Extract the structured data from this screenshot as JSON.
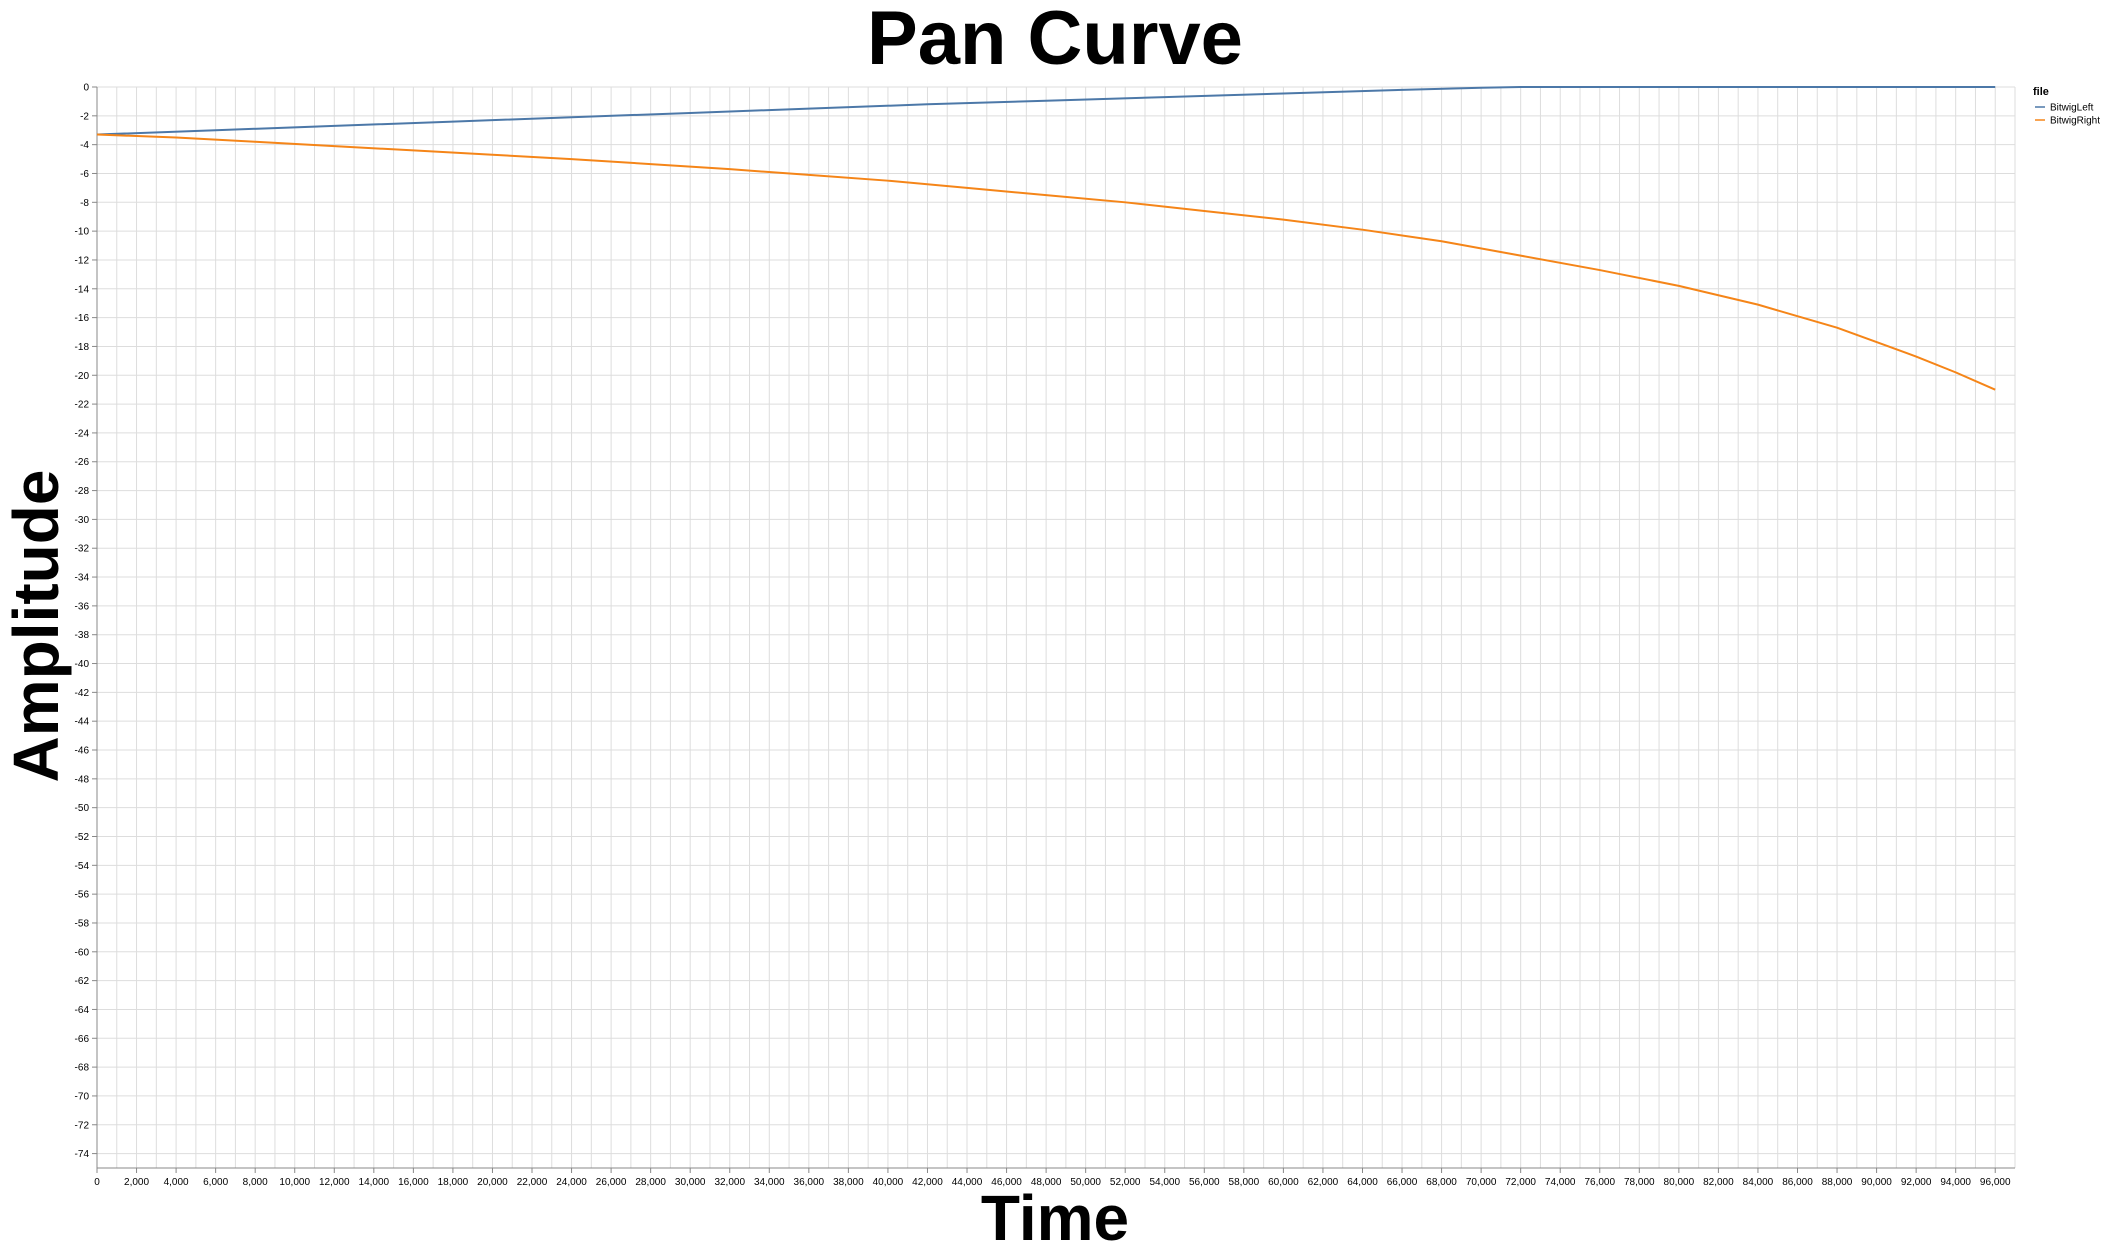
{
  "chart_data": {
    "type": "line",
    "title": "Pan Curve",
    "xlabel": "Time",
    "ylabel": "Amplitude",
    "xlim": [
      0,
      97000
    ],
    "ylim": [
      -75,
      0
    ],
    "x_ticks": [
      0,
      2000,
      4000,
      6000,
      8000,
      10000,
      12000,
      14000,
      16000,
      18000,
      20000,
      22000,
      24000,
      26000,
      28000,
      30000,
      32000,
      34000,
      36000,
      38000,
      40000,
      42000,
      44000,
      46000,
      48000,
      50000,
      52000,
      54000,
      56000,
      58000,
      60000,
      62000,
      64000,
      66000,
      68000,
      70000,
      72000,
      74000,
      76000,
      78000,
      80000,
      82000,
      84000,
      86000,
      88000,
      90000,
      92000,
      94000,
      96000
    ],
    "x_tick_labels": [
      "0",
      "2,000",
      "4,000",
      "6,000",
      "8,000",
      "10,000",
      "12,000",
      "14,000",
      "16,000",
      "18,000",
      "20,000",
      "22,000",
      "24,000",
      "26,000",
      "28,000",
      "30,000",
      "32,000",
      "34,000",
      "36,000",
      "38,000",
      "40,000",
      "42,000",
      "44,000",
      "46,000",
      "48,000",
      "50,000",
      "52,000",
      "54,000",
      "56,000",
      "58,000",
      "60,000",
      "62,000",
      "64,000",
      "66,000",
      "68,000",
      "70,000",
      "72,000",
      "74,000",
      "76,000",
      "78,000",
      "80,000",
      "82,000",
      "84,000",
      "86,000",
      "88,000",
      "90,000",
      "92,000",
      "94,000",
      "96,000"
    ],
    "y_ticks": [
      0,
      -2,
      -4,
      -6,
      -8,
      -10,
      -12,
      -14,
      -16,
      -18,
      -20,
      -22,
      -24,
      -26,
      -28,
      -30,
      -32,
      -34,
      -36,
      -38,
      -40,
      -42,
      -44,
      -46,
      -48,
      -50,
      -52,
      -54,
      -56,
      -58,
      -60,
      -62,
      -64,
      -66,
      -68,
      -70,
      -72,
      -74
    ],
    "grid": true,
    "legend": {
      "title": "file",
      "position": "top-right"
    },
    "series": [
      {
        "name": "BitwigLeft",
        "color": "#4c78a8",
        "x": [
          0,
          6000,
          12000,
          18000,
          24000,
          30000,
          36000,
          42000,
          48000,
          54000,
          60000,
          66000,
          70000,
          72000,
          78000,
          84000,
          90000,
          96000
        ],
        "y": [
          -3.3,
          -3.0,
          -2.7,
          -2.4,
          -2.1,
          -1.8,
          -1.5,
          -1.2,
          -0.95,
          -0.7,
          -0.45,
          -0.2,
          -0.05,
          0,
          0,
          0,
          0,
          0
        ]
      },
      {
        "name": "BitwigRight",
        "color": "#f58518",
        "x": [
          0,
          4000,
          8000,
          12000,
          16000,
          20000,
          24000,
          28000,
          32000,
          36000,
          40000,
          44000,
          48000,
          52000,
          56000,
          60000,
          64000,
          68000,
          72000,
          76000,
          80000,
          84000,
          86000,
          88000,
          90000,
          92000,
          94000,
          96000
        ],
        "y": [
          -3.3,
          -3.5,
          -3.8,
          -4.1,
          -4.4,
          -4.7,
          -5.0,
          -5.35,
          -5.7,
          -6.1,
          -6.5,
          -7.0,
          -7.5,
          -8.0,
          -8.6,
          -9.2,
          -9.9,
          -10.7,
          -11.7,
          -12.7,
          -13.8,
          -15.1,
          -15.9,
          -16.7,
          -17.7,
          -18.7,
          -19.8,
          -21.0
        ]
      }
    ]
  }
}
